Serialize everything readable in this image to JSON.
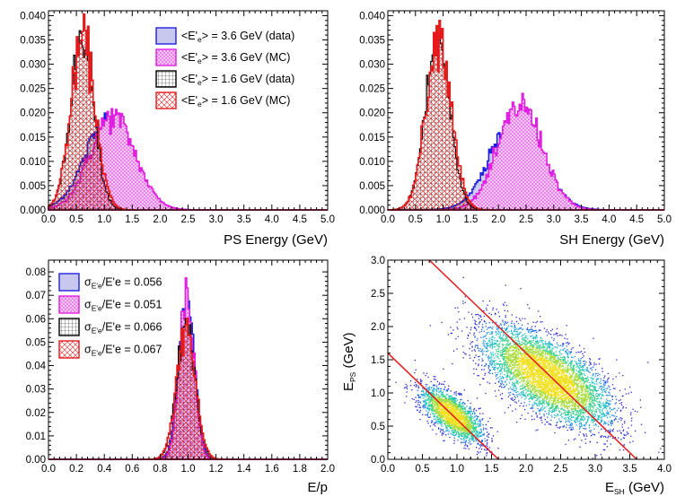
{
  "chart_data": [
    {
      "panel": "top-left",
      "type": "histogram",
      "xlabel": "PS Energy (GeV)",
      "ylabel": "",
      "xlim": [
        0,
        5
      ],
      "ylim": [
        0,
        0.041
      ],
      "xticks": [
        "0.0",
        "0.5",
        "1.0",
        "1.5",
        "2.0",
        "2.5",
        "3.0",
        "3.5",
        "4.0",
        "4.5",
        "5.0"
      ],
      "yticks": [
        "0.000",
        "0.005",
        "0.010",
        "0.015",
        "0.020",
        "0.025",
        "0.030",
        "0.035",
        "0.040"
      ],
      "legend_position": "top-right",
      "legend": [
        {
          "text": "<E'e> = 3.6 GeV (data)",
          "main": "<E'",
          "sub": "e",
          "rest": "> = 3.6 GeV (data)",
          "style": "blue-solid"
        },
        {
          "text": "<E'e> = 3.6 GeV (MC)",
          "main": "<E'",
          "sub": "e",
          "rest": "> = 3.6 GeV (MC)",
          "style": "magenta-dots"
        },
        {
          "text": "<E'e> = 1.6 GeV (data)",
          "main": "<E'",
          "sub": "e",
          "rest": "> = 1.6 GeV (data)",
          "style": "black-grid"
        },
        {
          "text": "<E'e> = 1.6 GeV (MC)",
          "main": "<E'",
          "sub": "e",
          "rest": "> = 1.6 GeV (MC)",
          "style": "red-cross"
        }
      ],
      "series": [
        {
          "name": "<E'e> = 3.6 GeV (data)",
          "kind": "gauss",
          "mean": 1.08,
          "sigma": 0.42,
          "peak": 0.0185
        },
        {
          "name": "<E'e> = 3.6 GeV (MC)",
          "kind": "gauss",
          "mean": 1.15,
          "sigma": 0.4,
          "peak": 0.0192
        },
        {
          "name": "<E'e> = 1.6 GeV (data)",
          "kind": "gauss",
          "mean": 0.6,
          "sigma": 0.21,
          "peak": 0.0345
        },
        {
          "name": "<E'e> = 1.6 GeV (MC)",
          "kind": "gauss",
          "mean": 0.62,
          "sigma": 0.22,
          "peak": 0.035
        }
      ]
    },
    {
      "panel": "top-right",
      "type": "histogram",
      "xlabel": "SH Energy (GeV)",
      "ylabel": "",
      "xlim": [
        0,
        5
      ],
      "ylim": [
        0,
        0.041
      ],
      "xticks": [
        "0.0",
        "0.5",
        "1.0",
        "1.5",
        "2.0",
        "2.5",
        "3.0",
        "3.5",
        "4.0",
        "4.5",
        "5.0"
      ],
      "yticks": [
        "0.000",
        "0.005",
        "0.010",
        "0.015",
        "0.020",
        "0.025",
        "0.030",
        "0.035",
        "0.040"
      ],
      "series": [
        {
          "name": "<E'e> = 3.6 GeV (data)",
          "kind": "gauss",
          "mean": 2.33,
          "sigma": 0.45,
          "peak": 0.019
        },
        {
          "name": "<E'e> = 3.6 GeV (MC)",
          "kind": "gauss",
          "mean": 2.4,
          "sigma": 0.4,
          "peak": 0.0215
        },
        {
          "name": "<E'e> = 1.6 GeV (data)",
          "kind": "gauss",
          "mean": 0.9,
          "sigma": 0.22,
          "peak": 0.035
        },
        {
          "name": "<E'e> = 1.6 GeV (MC)",
          "kind": "gauss",
          "mean": 0.92,
          "sigma": 0.23,
          "peak": 0.036
        }
      ]
    },
    {
      "panel": "bottom-left",
      "type": "histogram",
      "xlabel": "E/p",
      "ylabel": "",
      "xlim": [
        0,
        2
      ],
      "ylim": [
        0,
        0.085
      ],
      "xticks": [
        "0.0",
        "0.2",
        "0.4",
        "0.6",
        "0.8",
        "1.0",
        "1.2",
        "1.4",
        "1.6",
        "1.8",
        "2.0"
      ],
      "yticks": [
        "0.00",
        "0.01",
        "0.02",
        "0.03",
        "0.04",
        "0.05",
        "0.06",
        "0.07",
        "0.08"
      ],
      "legend_position": "top-left",
      "legend": [
        {
          "text": "σE'e/E'e = 0.056",
          "sym": "σ",
          "subtext": "E'e",
          "rest": "/E'e = 0.056",
          "style": "blue-solid"
        },
        {
          "text": "σE'e/E'e = 0.051",
          "sym": "σ",
          "subtext": "E'e",
          "rest": "/E'e = 0.051",
          "style": "magenta-dots"
        },
        {
          "text": "σE'e/E'e = 0.066",
          "sym": "σ",
          "subtext": "E'e",
          "rest": "/E'e = 0.066",
          "style": "black-grid"
        },
        {
          "text": "σE'e/E'e = 0.067",
          "sym": "σ",
          "subtext": "E'e",
          "rest": "/E'e = 0.067",
          "style": "red-cross"
        }
      ],
      "series": [
        {
          "name": "σE'e/E'e = 0.056",
          "kind": "gauss",
          "mean": 0.99,
          "sigma": 0.056,
          "peak": 0.068
        },
        {
          "name": "σE'e/E'e = 0.051",
          "kind": "gauss",
          "mean": 0.99,
          "sigma": 0.051,
          "peak": 0.075
        },
        {
          "name": "σE'e/E'e = 0.066",
          "kind": "gauss",
          "mean": 0.985,
          "sigma": 0.066,
          "peak": 0.058
        },
        {
          "name": "σE'e/E'e = 0.067",
          "kind": "gauss",
          "mean": 0.985,
          "sigma": 0.067,
          "peak": 0.057
        }
      ]
    },
    {
      "panel": "bottom-right",
      "type": "heatmap",
      "xlabel": "E_SH (GeV)",
      "xlabel_main": "E",
      "xlabel_sub": "SH",
      "xlabel_rest": " (GeV)",
      "ylabel": "E_PS (GeV)",
      "ylabel_main": "E",
      "ylabel_sub": "PS",
      "ylabel_rest": " (GeV)",
      "xlim": [
        0,
        4
      ],
      "ylim": [
        0,
        3
      ],
      "xticks": [
        "0.0",
        "0.5",
        "1.0",
        "1.5",
        "2.0",
        "2.5",
        "3.0",
        "3.5",
        "4.0"
      ],
      "yticks": [
        "0.0",
        "0.5",
        "1.0",
        "1.5",
        "2.0",
        "2.5",
        "3.0"
      ],
      "clusters": [
        {
          "name": "1.6 GeV",
          "center": [
            0.92,
            0.68
          ],
          "axis": [
            1,
            -0.9
          ],
          "sigma_along": 0.28,
          "sigma_across": 0.12
        },
        {
          "name": "3.6 GeV",
          "center": [
            2.3,
            1.25
          ],
          "axis": [
            1,
            -0.72
          ],
          "sigma_along": 0.55,
          "sigma_across": 0.24
        }
      ],
      "cut_lines": [
        {
          "from": [
            0.0,
            1.6
          ],
          "to": [
            1.6,
            0.0
          ]
        },
        {
          "from": [
            0.6,
            3.0
          ],
          "to": [
            3.6,
            0.0
          ]
        }
      ]
    }
  ]
}
